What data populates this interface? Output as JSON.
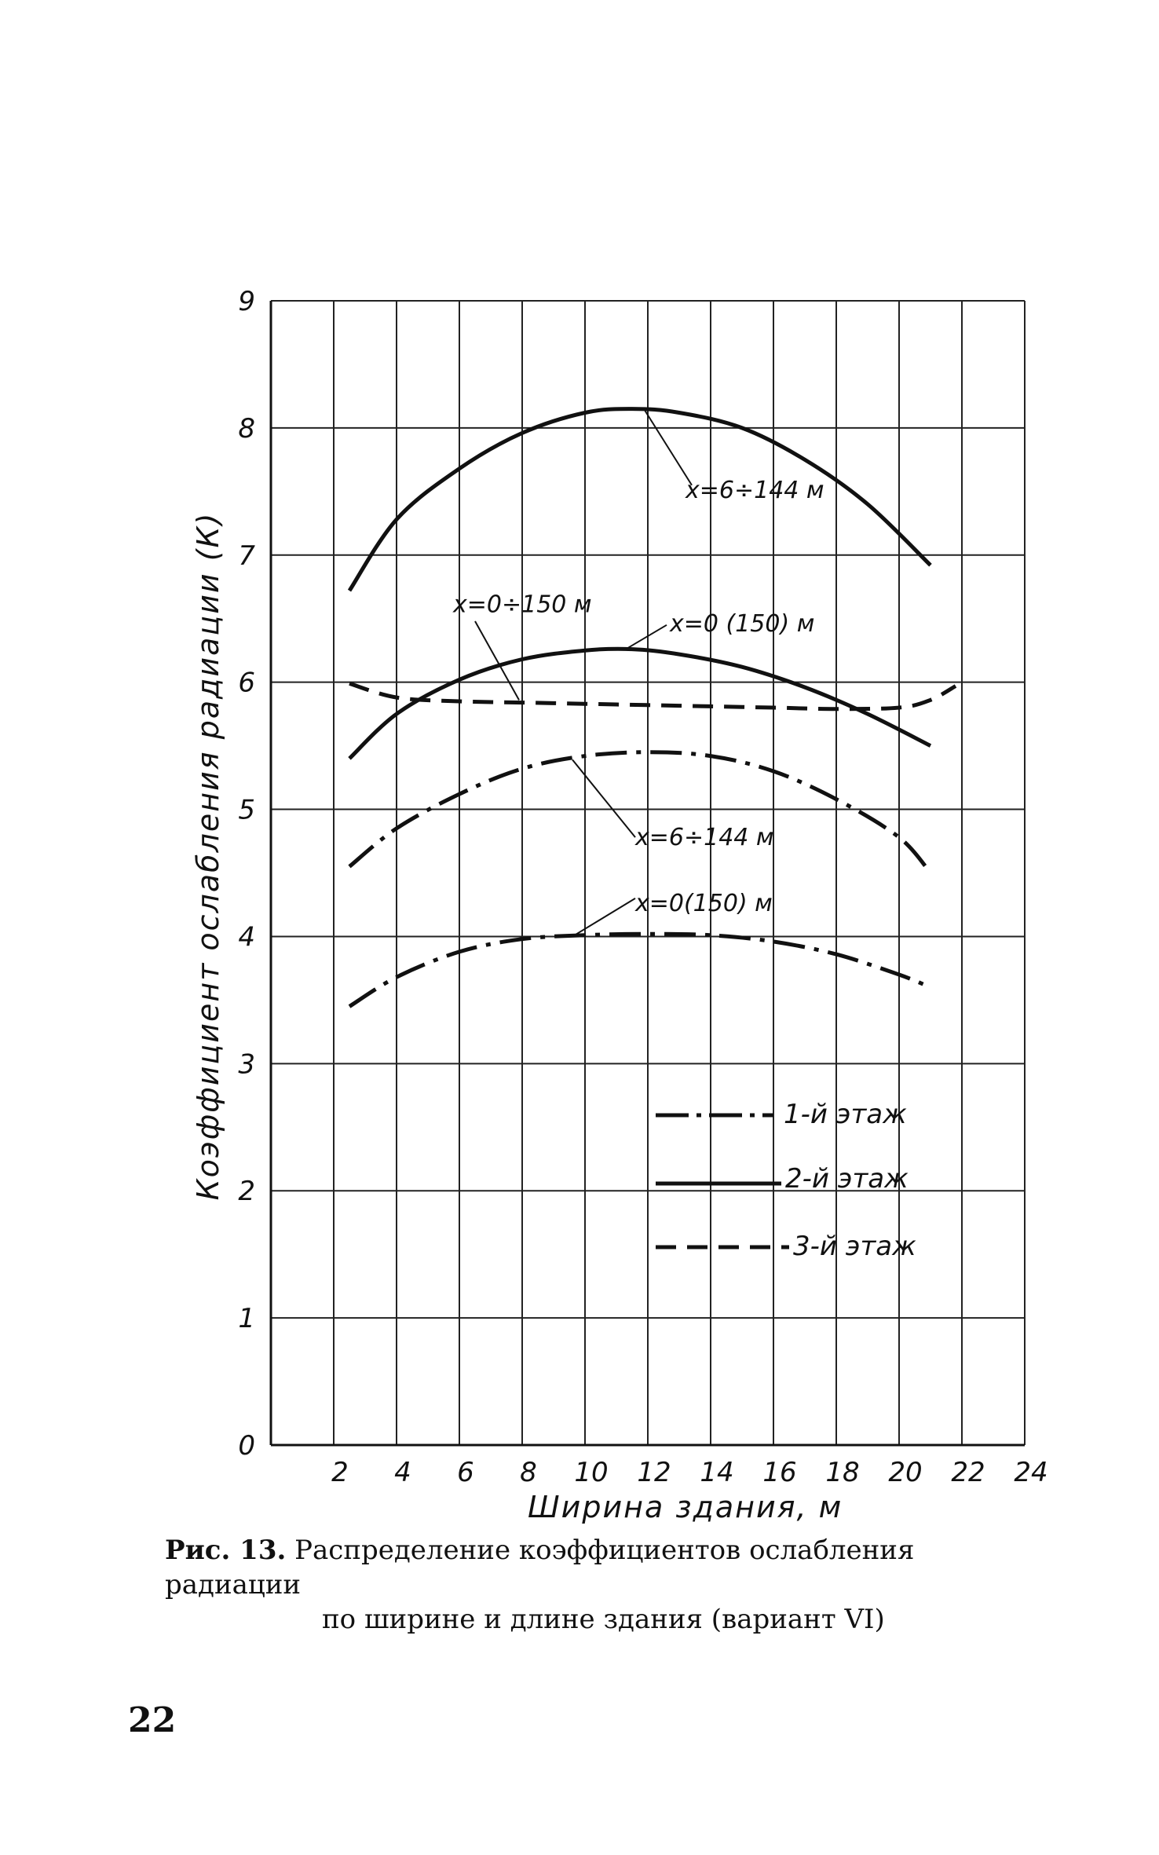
{
  "chart_data": {
    "type": "line",
    "title": "",
    "xlabel": "Ширина здания, м",
    "ylabel": "Коэффициент ослабления радиации (К)",
    "xlim": [
      0,
      24
    ],
    "ylim": [
      0,
      9
    ],
    "x_ticks": [
      "2",
      "4",
      "6",
      "8",
      "10",
      "12",
      "14",
      "16",
      "18",
      "20",
      "22",
      "24"
    ],
    "y_ticks": [
      "0",
      "1",
      "2",
      "3",
      "4",
      "5",
      "6",
      "7",
      "8",
      "9"
    ],
    "grid": true,
    "legend": {
      "placement": "lower-right",
      "entries": [
        {
          "label": "1-й этаж",
          "style": "dashdot"
        },
        {
          "label": "2-й этаж",
          "style": "solid"
        },
        {
          "label": "3-й этаж",
          "style": "dashed"
        }
      ]
    },
    "series": [
      {
        "name": "2-й этаж, x=6÷144 м",
        "style": "solid",
        "x": [
          2.5,
          4,
          6,
          8,
          10,
          11.5,
          13,
          15,
          17,
          19,
          21
        ],
        "y": [
          6.72,
          7.28,
          7.68,
          7.96,
          8.12,
          8.15,
          8.12,
          8.0,
          7.75,
          7.4,
          6.92
        ]
      },
      {
        "name": "2-й этаж, x=0(150) м",
        "style": "solid",
        "x": [
          2.5,
          4,
          6,
          8,
          10,
          11.5,
          13,
          15,
          17,
          19,
          21
        ],
        "y": [
          5.4,
          5.75,
          6.02,
          6.18,
          6.25,
          6.26,
          6.22,
          6.12,
          5.96,
          5.75,
          5.5
        ]
      },
      {
        "name": "3-й этаж, x=0÷150 м",
        "style": "dashed",
        "x": [
          2.5,
          4,
          6,
          8,
          10,
          12,
          14,
          16,
          18,
          20,
          21,
          21.8
        ],
        "y": [
          5.99,
          5.88,
          5.85,
          5.84,
          5.83,
          5.82,
          5.81,
          5.8,
          5.79,
          5.8,
          5.86,
          5.97
        ]
      },
      {
        "name": "1-й этаж, x=6÷144 м",
        "style": "dashdot",
        "x": [
          2.5,
          4,
          6,
          8,
          10,
          12,
          14,
          16,
          18,
          20,
          21
        ],
        "y": [
          4.55,
          4.85,
          5.12,
          5.32,
          5.42,
          5.45,
          5.42,
          5.3,
          5.08,
          4.78,
          4.5
        ]
      },
      {
        "name": "1-й этаж, x=0(150) м",
        "style": "dashdot",
        "x": [
          2.5,
          4,
          6,
          8,
          10,
          12,
          14,
          16,
          18,
          20,
          21
        ],
        "y": [
          3.45,
          3.68,
          3.88,
          3.98,
          4.01,
          4.02,
          4.01,
          3.96,
          3.86,
          3.7,
          3.6
        ]
      }
    ],
    "annotations": [
      {
        "text": "x=6÷144 м",
        "target": "2-й этаж, x=6÷144 м"
      },
      {
        "text": "x=0÷150 м",
        "target": "3-й этаж, x=0÷150 м"
      },
      {
        "text": "x=0 (150) м",
        "target": "2-й этаж, x=0(150) м"
      },
      {
        "text": "x=6÷144 м",
        "target": "1-й этаж, x=6÷144 м"
      },
      {
        "text": "x=0(150) м",
        "target": "1-й этаж, x=0(150) м"
      }
    ]
  },
  "caption": {
    "label": "Рис. 13.",
    "line1": "Распределение коэффициентов ослабления радиации",
    "line2": "по ширине и длине здания (вариант VI)"
  },
  "page_number": "22"
}
